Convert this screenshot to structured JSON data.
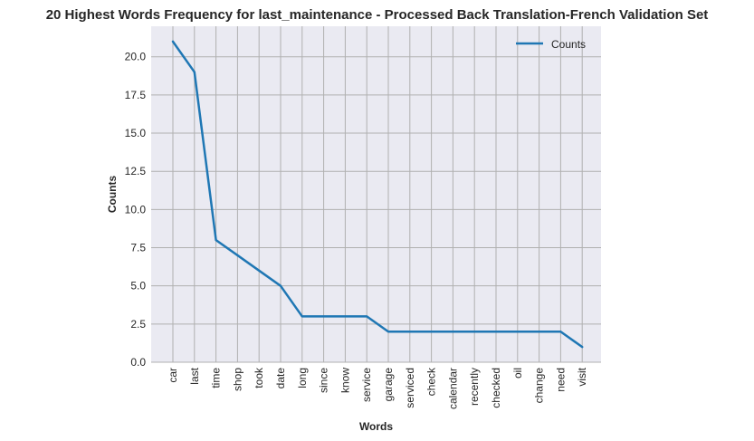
{
  "chart_data": {
    "type": "line",
    "title": "20 Highest Words Frequency for last_maintenance - Processed Back Translation-French Validation Set",
    "xlabel": "Words",
    "ylabel": "Counts",
    "categories": [
      "car",
      "last",
      "time",
      "shop",
      "took",
      "date",
      "long",
      "since",
      "know",
      "service",
      "garage",
      "serviced",
      "check",
      "calendar",
      "recently",
      "checked",
      "oil",
      "change",
      "need",
      "visit"
    ],
    "series": [
      {
        "name": "Counts",
        "values": [
          21,
          19,
          8,
          7,
          6,
          5,
          3,
          3,
          3,
          3,
          2,
          2,
          2,
          2,
          2,
          2,
          2,
          2,
          2,
          1
        ]
      }
    ],
    "ylim": [
      0,
      22
    ],
    "yticks": [
      "0.0",
      "2.5",
      "5.0",
      "7.5",
      "10.0",
      "12.5",
      "15.0",
      "17.5",
      "20.0"
    ],
    "ytick_values": [
      0,
      2.5,
      5,
      7.5,
      10,
      12.5,
      15,
      17.5,
      20
    ],
    "grid": true,
    "legend_position": "top-right",
    "colors": {
      "line": "#1f77b4",
      "background": "#eaeaf2",
      "grid": "#b0b0b0",
      "text": "#262626"
    }
  }
}
